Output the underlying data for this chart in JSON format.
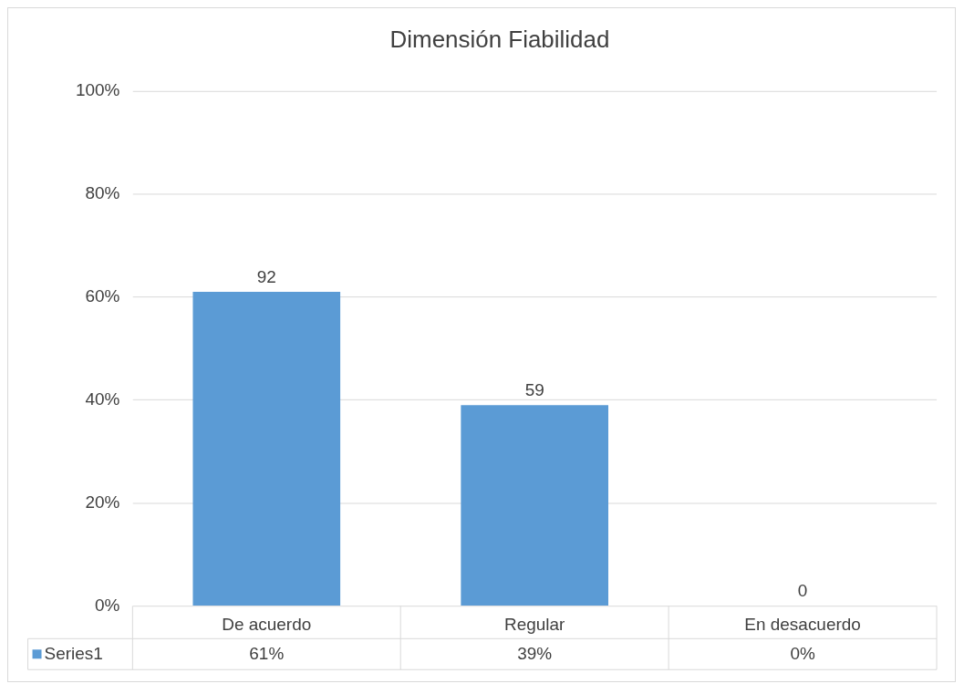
{
  "chart_data": {
    "type": "bar",
    "title": "Dimensión Fiabilidad",
    "categories": [
      "De acuerdo",
      "Regular",
      "En desacuerdo"
    ],
    "series": [
      {
        "name": "Series1",
        "color": "#5b9bd5",
        "values": [
          61,
          39,
          0
        ],
        "value_labels": [
          "61%",
          "39%",
          "0%"
        ]
      }
    ],
    "ylim": [
      0,
      100
    ],
    "yticks": [
      {
        "value": 0,
        "label": "0%"
      },
      {
        "value": 20,
        "label": "20%"
      },
      {
        "value": 40,
        "label": "40%"
      },
      {
        "value": 60,
        "label": "60%"
      },
      {
        "value": 80,
        "label": "80%"
      },
      {
        "value": 100,
        "label": "100%"
      }
    ],
    "grid": "y",
    "legend": "bottom",
    "annotations": [
      {
        "text": "92",
        "x": "De acuerdo",
        "y": 61
      },
      {
        "text": "59",
        "x": "Regular",
        "y": 39
      },
      {
        "text": "0",
        "x": "En desacuerdo",
        "y": 0
      }
    ]
  }
}
